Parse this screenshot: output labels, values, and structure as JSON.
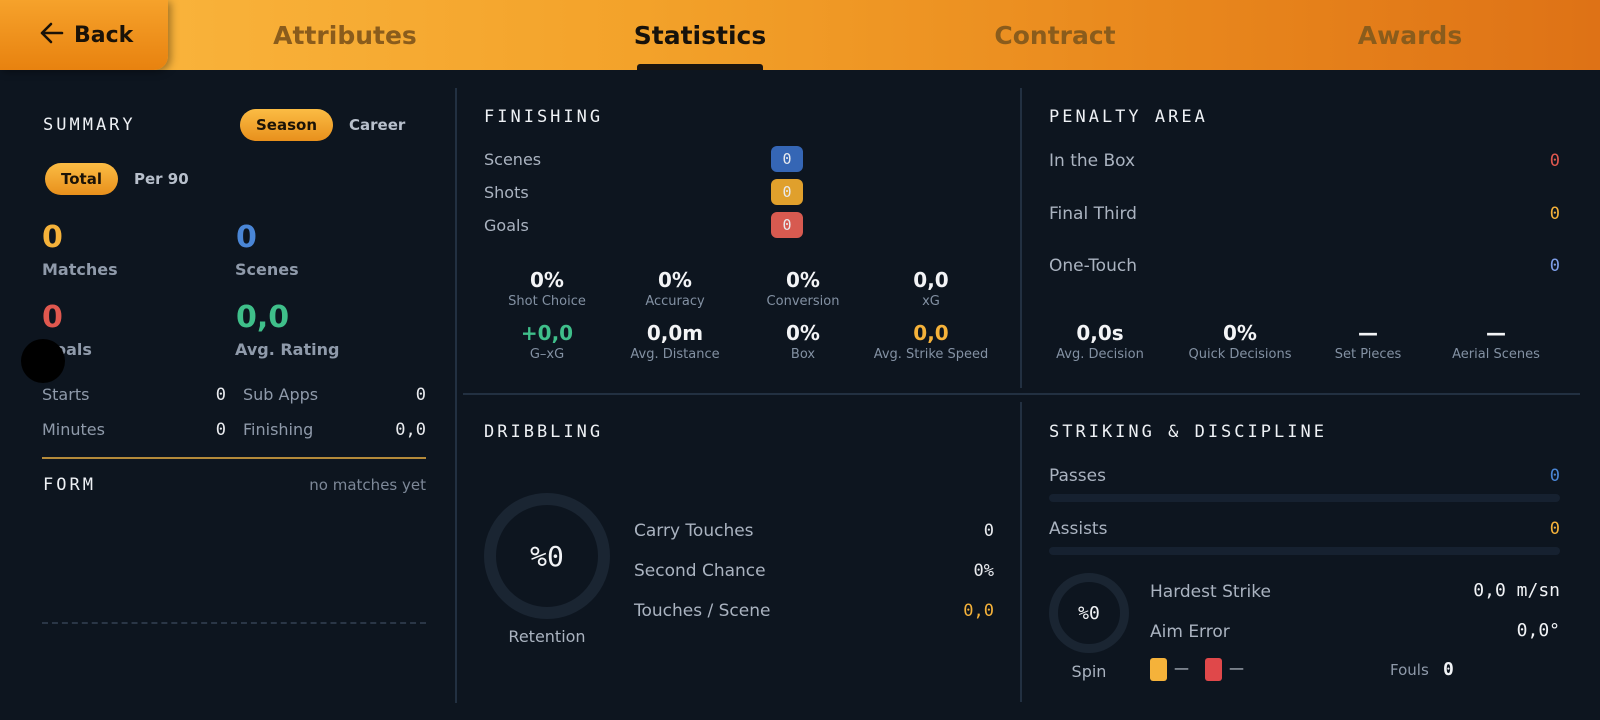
{
  "nav": {
    "back_label": "Back",
    "tabs": [
      "Attributes",
      "Statistics",
      "Contract",
      "Awards"
    ],
    "active_tab": "Statistics"
  },
  "summary": {
    "title": "SUMMARY",
    "scope_options": [
      "Season",
      "Career"
    ],
    "scope_selected": "Season",
    "mode_options": [
      "Total",
      "Per 90"
    ],
    "mode_selected": "Total",
    "stats": {
      "matches": {
        "value": "0",
        "label": "Matches",
        "color": "#f5b23a"
      },
      "scenes": {
        "value": "0",
        "label": "Scenes",
        "color": "#4a86d6"
      },
      "goals": {
        "value": "0",
        "label": "Goals",
        "color": "#e0584f"
      },
      "avg_rating": {
        "value": "0,0",
        "label": "Avg. Rating",
        "color": "#3fbf8a"
      }
    },
    "rows": [
      {
        "label": "Starts",
        "value": "0"
      },
      {
        "label": "Sub Apps",
        "value": "0"
      },
      {
        "label": "Minutes",
        "value": "0"
      },
      {
        "label": "Finishing",
        "value": "0,0"
      }
    ],
    "form_title": "FORM",
    "form_empty": "no matches yet"
  },
  "finishing": {
    "title": "FINISHING",
    "counts": [
      {
        "label": "Scenes",
        "value": "0",
        "color": "#3566b5"
      },
      {
        "label": "Shots",
        "value": "0",
        "color": "#e0a02c"
      },
      {
        "label": "Goals",
        "value": "0",
        "color": "#d75a50"
      }
    ],
    "metrics": [
      {
        "value": "0%",
        "label": "Shot Choice"
      },
      {
        "value": "0%",
        "label": "Accuracy"
      },
      {
        "value": "0%",
        "label": "Conversion"
      },
      {
        "value": "0,0",
        "label": "xG"
      },
      {
        "value": "+0,0",
        "label": "G–xG"
      },
      {
        "value": "0,0m",
        "label": "Avg. Distance"
      },
      {
        "value": "0%",
        "label": "Box"
      },
      {
        "value": "0,0",
        "label": "Avg. Strike Speed"
      }
    ]
  },
  "penalty_area": {
    "title": "PENALTY AREA",
    "rows": [
      {
        "label": "In the Box",
        "value": "0",
        "color": "#e0584f"
      },
      {
        "label": "Final Third",
        "value": "0",
        "color": "#f5b23a"
      },
      {
        "label": "One-Touch",
        "value": "0",
        "color": "#7e9ee8"
      }
    ],
    "metrics": [
      {
        "value": "0,0s",
        "label": "Avg. Decision"
      },
      {
        "value": "0%",
        "label": "Quick Decisions"
      },
      {
        "value": "—",
        "label": "Set Pieces"
      },
      {
        "value": "—",
        "label": "Aerial Scenes"
      }
    ]
  },
  "dribbling": {
    "title": "DRIBBLING",
    "ring_value": "%0",
    "ring_label": "Retention",
    "rows": [
      {
        "label": "Carry Touches",
        "value": "0",
        "color": "#e8eaee"
      },
      {
        "label": "Second Chance",
        "value": "0%",
        "color": "#e8eaee"
      },
      {
        "label": "Touches / Scene",
        "value": "0,0",
        "color": "#f5b23a"
      }
    ]
  },
  "striking": {
    "title": "STRIKING & DISCIPLINE",
    "rows": [
      {
        "label": "Passes",
        "value": "0",
        "color": "#4a86d6"
      },
      {
        "label": "Assists",
        "value": "0",
        "color": "#f5b23a"
      }
    ],
    "ring_value": "%0",
    "ring_label": "Spin",
    "details": [
      {
        "label": "Hardest Strike",
        "value": "0,0 m/sn"
      },
      {
        "label": "Aim Error",
        "value": "0,0°"
      }
    ],
    "yellow_card": "—",
    "red_card": "—",
    "fouls_label": "Fouls",
    "fouls_value": "0"
  },
  "colors": {
    "accent": "#f3a22a",
    "background": "#0d151f",
    "yellow_card": "#f5b23a",
    "red_card": "#e0484a"
  },
  "icons": {
    "back": "arrow-left-icon"
  }
}
